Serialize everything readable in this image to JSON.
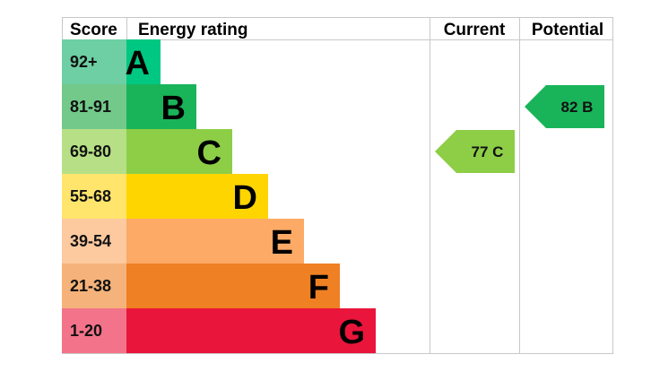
{
  "headers": {
    "score": "Score",
    "energy_rating": "Energy rating",
    "current": "Current",
    "potential": "Potential"
  },
  "chart_data": {
    "type": "bar",
    "categories": [
      "A",
      "B",
      "C",
      "D",
      "E",
      "F",
      "G"
    ],
    "bands": [
      {
        "score": "92+",
        "letter": "A",
        "color": "#00c781",
        "score_color": "#6dcfa3",
        "length": 1
      },
      {
        "score": "81-91",
        "letter": "B",
        "color": "#19b459",
        "score_color": "#72c98a",
        "length": 2
      },
      {
        "score": "69-80",
        "letter": "C",
        "color": "#8dce46",
        "score_color": "#b7e086",
        "length": 3
      },
      {
        "score": "55-68",
        "letter": "D",
        "color": "#ffd500",
        "score_color": "#ffe56c",
        "length": 4
      },
      {
        "score": "39-54",
        "letter": "E",
        "color": "#fcaa65",
        "score_color": "#fdcaa0",
        "length": 5
      },
      {
        "score": "21-38",
        "letter": "F",
        "color": "#ef8023",
        "score_color": "#f5b27a",
        "length": 6
      },
      {
        "score": "1-20",
        "letter": "G",
        "color": "#e9153b",
        "score_color": "#f3738a",
        "length": 7
      }
    ],
    "current": {
      "value": 77,
      "letter": "C",
      "color": "#8dce46"
    },
    "potential": {
      "value": 82,
      "letter": "B",
      "color": "#19b459"
    }
  }
}
